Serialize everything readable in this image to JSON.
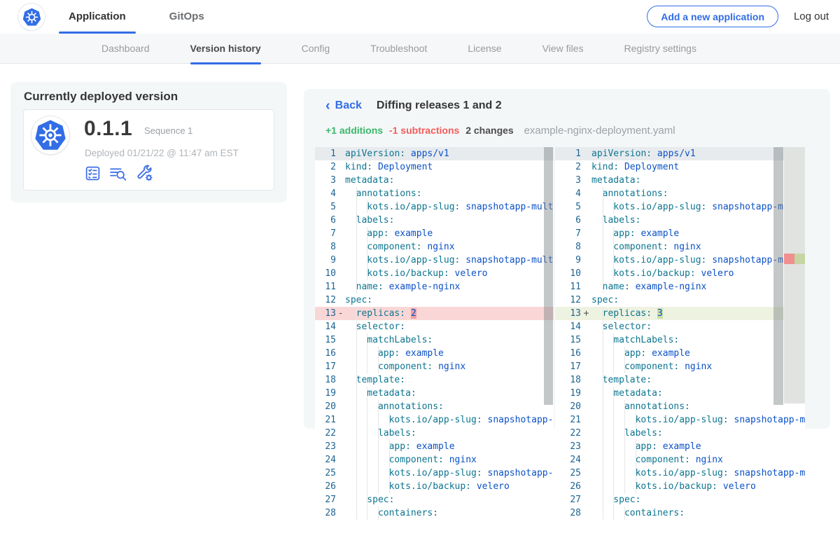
{
  "colors": {
    "accent_blue": "#326de6",
    "additions_green": "#3cb86a",
    "subtractions_red": "#f55b5b",
    "diff_delete_line": "#fad7d7",
    "diff_insert_line": "#eef2e0",
    "yaml_key": "#0d7590",
    "yaml_value": "#0b51c6"
  },
  "topnav": {
    "logo": "kubernetes-logo",
    "tabs": [
      {
        "label": "Application",
        "active": true
      },
      {
        "label": "GitOps",
        "active": false
      }
    ],
    "add_app_button": "Add a new application",
    "logout_label": "Log out"
  },
  "subnav": {
    "tabs": [
      {
        "label": "Dashboard",
        "active": false
      },
      {
        "label": "Version history",
        "active": true
      },
      {
        "label": "Config",
        "active": false
      },
      {
        "label": "Troubleshoot",
        "active": false
      },
      {
        "label": "License",
        "active": false
      },
      {
        "label": "View files",
        "active": false
      },
      {
        "label": "Registry settings",
        "active": false
      }
    ]
  },
  "deployed": {
    "card_title": "Currently deployed version",
    "version": "0.1.1",
    "sequence": "Sequence 1",
    "deployed_at": "Deployed 01/21/22 @ 11:47 am EST",
    "action_icons": [
      "release-notes-icon",
      "view-files-icon",
      "config-tools-icon"
    ]
  },
  "diff": {
    "back_label": "Back",
    "title": "Diffing releases 1 and 2",
    "additions_label": "+1 additions",
    "subtractions_label": "-1 subtractions",
    "changes_label": "2 changes",
    "filename": "example-nginx-deployment.yaml",
    "lines": [
      {
        "n": 1,
        "indent": 0,
        "key": "apiVersion",
        "value": "apps/v1"
      },
      {
        "n": 2,
        "indent": 0,
        "key": "kind",
        "value": "Deployment"
      },
      {
        "n": 3,
        "indent": 0,
        "key": "metadata",
        "value": ""
      },
      {
        "n": 4,
        "indent": 2,
        "key": "annotations",
        "value": ""
      },
      {
        "n": 5,
        "indent": 4,
        "key": "kots.io/app-slug",
        "value": "snapshotapp-multi"
      },
      {
        "n": 6,
        "indent": 2,
        "key": "labels",
        "value": ""
      },
      {
        "n": 7,
        "indent": 4,
        "key": "app",
        "value": "example"
      },
      {
        "n": 8,
        "indent": 4,
        "key": "component",
        "value": "nginx"
      },
      {
        "n": 9,
        "indent": 4,
        "key": "kots.io/app-slug",
        "value": "snapshotapp-multi"
      },
      {
        "n": 10,
        "indent": 4,
        "key": "kots.io/backup",
        "value": "velero"
      },
      {
        "n": 11,
        "indent": 2,
        "key": "name",
        "value": "example-nginx"
      },
      {
        "n": 12,
        "indent": 0,
        "key": "spec",
        "value": ""
      },
      {
        "n": 13,
        "indent": 2,
        "key": "replicas",
        "changed": true,
        "left_value": "2",
        "right_value": "3"
      },
      {
        "n": 14,
        "indent": 2,
        "key": "selector",
        "value": ""
      },
      {
        "n": 15,
        "indent": 4,
        "key": "matchLabels",
        "value": ""
      },
      {
        "n": 16,
        "indent": 6,
        "key": "app",
        "value": "example"
      },
      {
        "n": 17,
        "indent": 6,
        "key": "component",
        "value": "nginx"
      },
      {
        "n": 18,
        "indent": 2,
        "key": "template",
        "value": ""
      },
      {
        "n": 19,
        "indent": 4,
        "key": "metadata",
        "value": ""
      },
      {
        "n": 20,
        "indent": 6,
        "key": "annotations",
        "value": ""
      },
      {
        "n": 21,
        "indent": 8,
        "key": "kots.io/app-slug",
        "value": "snapshotapp-multi"
      },
      {
        "n": 22,
        "indent": 6,
        "key": "labels",
        "value": ""
      },
      {
        "n": 23,
        "indent": 8,
        "key": "app",
        "value": "example"
      },
      {
        "n": 24,
        "indent": 8,
        "key": "component",
        "value": "nginx"
      },
      {
        "n": 25,
        "indent": 8,
        "key": "kots.io/app-slug",
        "value": "snapshotapp-multi"
      },
      {
        "n": 26,
        "indent": 8,
        "key": "kots.io/backup",
        "value": "velero"
      },
      {
        "n": 27,
        "indent": 4,
        "key": "spec",
        "value": ""
      },
      {
        "n": 28,
        "indent": 6,
        "key": "containers",
        "value": ""
      }
    ]
  }
}
